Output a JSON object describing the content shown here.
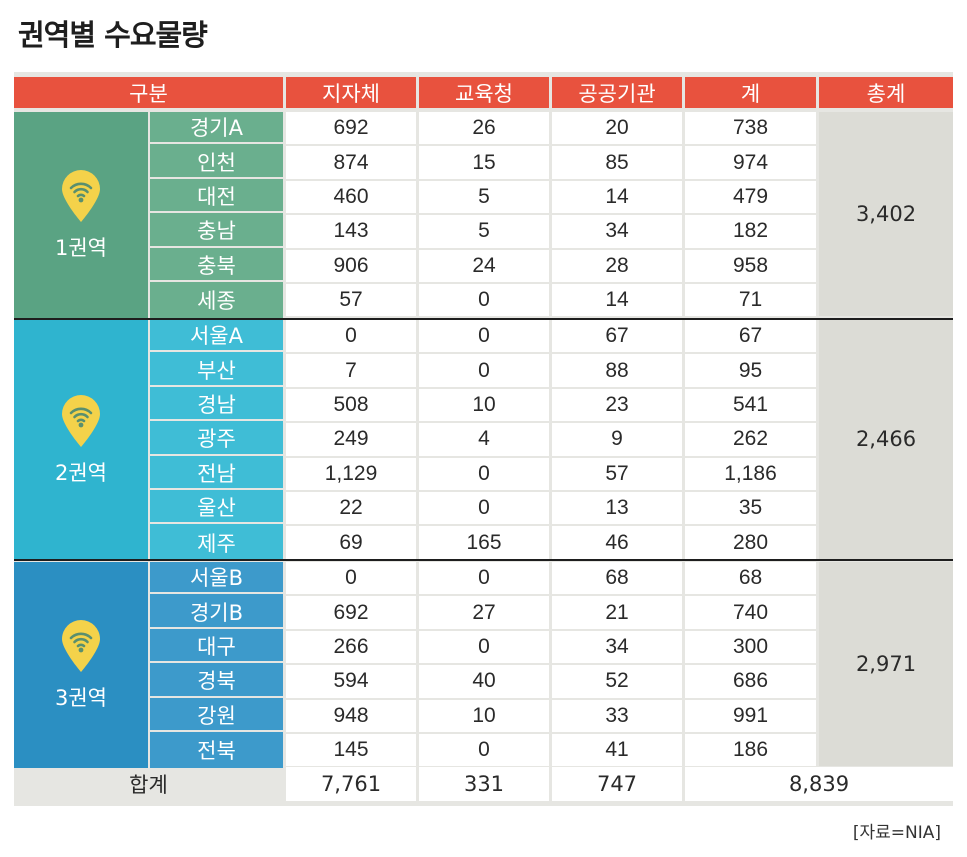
{
  "title": "권역별 수요물량",
  "headers": {
    "category": "구분",
    "local_gov": "지자체",
    "education": "교육청",
    "public_inst": "공공기관",
    "subtotal": "계",
    "grand_total": "총계"
  },
  "colors": {
    "header": "#e8523e",
    "region1": "#5aa383",
    "region1_sub": "#6aaf8e",
    "region2": "#2fb4cf",
    "region2_sub": "#3fbdd6",
    "region3": "#2b8fc2",
    "region3_sub": "#3d9acb",
    "pin": "#f4d24a"
  },
  "regions": [
    {
      "name": "1권역",
      "icon": "wifi-location-pin-icon",
      "total": "3,402",
      "rows": [
        {
          "area": "경기A",
          "local": "692",
          "edu": "26",
          "public": "20",
          "sum": "738"
        },
        {
          "area": "인천",
          "local": "874",
          "edu": "15",
          "public": "85",
          "sum": "974"
        },
        {
          "area": "대전",
          "local": "460",
          "edu": "5",
          "public": "14",
          "sum": "479"
        },
        {
          "area": "충남",
          "local": "143",
          "edu": "5",
          "public": "34",
          "sum": "182"
        },
        {
          "area": "충북",
          "local": "906",
          "edu": "24",
          "public": "28",
          "sum": "958"
        },
        {
          "area": "세종",
          "local": "57",
          "edu": "0",
          "public": "14",
          "sum": "71"
        }
      ]
    },
    {
      "name": "2권역",
      "icon": "wifi-location-pin-icon",
      "total": "2,466",
      "rows": [
        {
          "area": "서울A",
          "local": "0",
          "edu": "0",
          "public": "67",
          "sum": "67"
        },
        {
          "area": "부산",
          "local": "7",
          "edu": "0",
          "public": "88",
          "sum": "95"
        },
        {
          "area": "경남",
          "local": "508",
          "edu": "10",
          "public": "23",
          "sum": "541"
        },
        {
          "area": "광주",
          "local": "249",
          "edu": "4",
          "public": "9",
          "sum": "262"
        },
        {
          "area": "전남",
          "local": "1,129",
          "edu": "0",
          "public": "57",
          "sum": "1,186"
        },
        {
          "area": "울산",
          "local": "22",
          "edu": "0",
          "public": "13",
          "sum": "35"
        },
        {
          "area": "제주",
          "local": "69",
          "edu": "165",
          "public": "46",
          "sum": "280"
        }
      ]
    },
    {
      "name": "3권역",
      "icon": "wifi-location-pin-icon",
      "total": "2,971",
      "rows": [
        {
          "area": "서울B",
          "local": "0",
          "edu": "0",
          "public": "68",
          "sum": "68"
        },
        {
          "area": "경기B",
          "local": "692",
          "edu": "27",
          "public": "21",
          "sum": "740"
        },
        {
          "area": "대구",
          "local": "266",
          "edu": "0",
          "public": "34",
          "sum": "300"
        },
        {
          "area": "경북",
          "local": "594",
          "edu": "40",
          "public": "52",
          "sum": "686"
        },
        {
          "area": "강원",
          "local": "948",
          "edu": "10",
          "public": "33",
          "sum": "991"
        },
        {
          "area": "전북",
          "local": "145",
          "edu": "0",
          "public": "41",
          "sum": "186"
        }
      ]
    }
  ],
  "summary": {
    "label": "합계",
    "local": "7,761",
    "edu": "331",
    "public": "747",
    "total": "8,839"
  },
  "source": "[자료=NIA]"
}
